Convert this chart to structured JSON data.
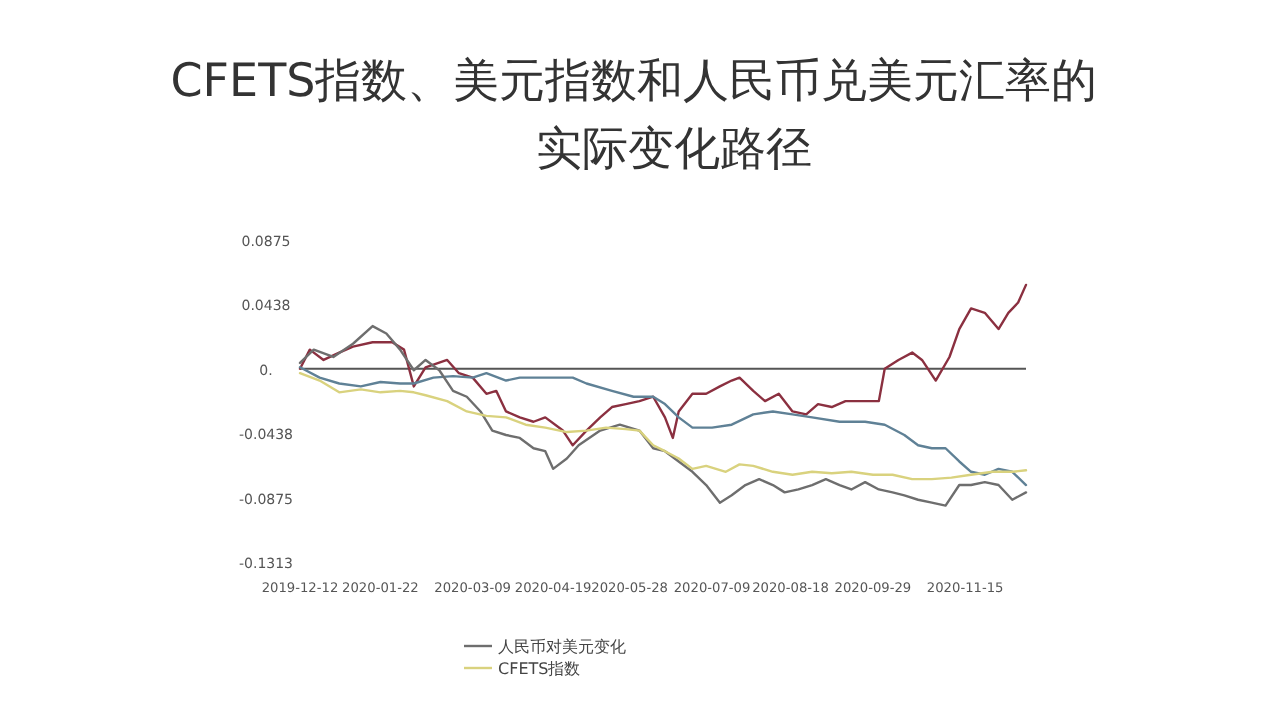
{
  "chart_data": {
    "type": "line",
    "title": "CFETS指数、美元指数和人民币兑美元汇率的实际变化路径",
    "ref_lines": [
      {
        "axis": "y",
        "value": 0,
        "color": "#555555"
      }
    ],
    "legend": "bottom",
    "grid": false,
    "marker": "none",
    "line_style": "solid",
    "xlim": [
      "2019-12-12",
      "2020-12-16"
    ],
    "xticks": [
      "2019-12-12",
      "2020-01-22",
      "2020-03-09",
      "2020-04-19",
      "2020-05-28",
      "2020-07-09",
      "2020-08-18",
      "2020-09-29",
      "2020-11-15"
    ],
    "ylim": [
      -0.1313,
      0.0875
    ],
    "yticks": [
      0.0875,
      0.0438,
      {
        "value": 0,
        "label": "0."
      },
      -0.0438,
      -0.0875,
      -0.1313
    ],
    "series": [
      {
        "color": "#8b3040",
        "x": [
          "2019-12-12",
          "2019-12-17",
          "2019-12-24",
          "2020-01-01",
          "2020-01-08",
          "2020-01-18",
          "2020-01-28",
          "2020-02-03",
          "2020-02-08",
          "2020-02-14",
          "2020-02-25",
          "2020-03-02",
          "2020-03-09",
          "2020-03-16",
          "2020-03-21",
          "2020-03-26",
          "2020-04-02",
          "2020-04-09",
          "2020-04-15",
          "2020-04-24",
          "2020-04-29",
          "2020-05-06",
          "2020-05-13",
          "2020-05-19",
          "2020-05-26",
          "2020-06-02",
          "2020-06-09",
          "2020-06-15",
          "2020-06-19",
          "2020-06-22",
          "2020-06-29",
          "2020-07-06",
          "2020-07-13",
          "2020-07-19",
          "2020-07-23",
          "2020-07-30",
          "2020-08-05",
          "2020-08-12",
          "2020-08-19",
          "2020-08-26",
          "2020-09-01",
          "2020-09-08",
          "2020-09-15",
          "2020-09-22",
          "2020-10-02",
          "2020-10-05",
          "2020-10-12",
          "2020-10-19",
          "2020-10-24",
          "2020-10-31",
          "2020-11-07",
          "2020-11-12",
          "2020-11-18",
          "2020-11-25",
          "2020-12-02",
          "2020-12-07",
          "2020-12-12",
          "2020-12-16"
        ],
        "values": [
          0,
          0.013,
          0.006,
          0.011,
          0.015,
          0.018,
          0.018,
          0.013,
          -0.012,
          0.001,
          0.006,
          -0.003,
          -0.006,
          -0.017,
          -0.015,
          -0.029,
          -0.033,
          -0.036,
          -0.033,
          -0.042,
          -0.052,
          -0.042,
          -0.033,
          -0.026,
          -0.024,
          -0.022,
          -0.019,
          -0.033,
          -0.047,
          -0.029,
          -0.017,
          -0.017,
          -0.012,
          -0.008,
          -0.006,
          -0.015,
          -0.022,
          -0.017,
          -0.029,
          -0.031,
          -0.024,
          -0.026,
          -0.022,
          -0.022,
          -0.022,
          0,
          0.006,
          0.011,
          0.006,
          -0.008,
          0.008,
          0.027,
          0.041,
          0.038,
          0.027,
          0.038,
          0.045,
          0.057
        ]
      },
      {
        "color": "#5f8196",
        "x": [
          "2019-12-12",
          "2019-12-22",
          "2020-01-01",
          "2020-01-12",
          "2020-01-22",
          "2020-02-01",
          "2020-02-08",
          "2020-02-18",
          "2020-02-28",
          "2020-03-09",
          "2020-03-16",
          "2020-03-26",
          "2020-04-02",
          "2020-04-12",
          "2020-04-22",
          "2020-04-29",
          "2020-05-06",
          "2020-05-19",
          "2020-05-30",
          "2020-06-09",
          "2020-06-15",
          "2020-06-22",
          "2020-06-29",
          "2020-07-09",
          "2020-07-19",
          "2020-07-30",
          "2020-08-09",
          "2020-08-19",
          "2020-08-29",
          "2020-09-12",
          "2020-09-25",
          "2020-10-05",
          "2020-10-15",
          "2020-10-22",
          "2020-10-29",
          "2020-11-05",
          "2020-11-12",
          "2020-11-18",
          "2020-11-25",
          "2020-12-02",
          "2020-12-09",
          "2020-12-16"
        ],
        "values": [
          0.001,
          -0.006,
          -0.01,
          -0.012,
          -0.009,
          -0.01,
          -0.01,
          -0.006,
          -0.005,
          -0.006,
          -0.003,
          -0.008,
          -0.006,
          -0.006,
          -0.006,
          -0.006,
          -0.01,
          -0.015,
          -0.019,
          -0.019,
          -0.024,
          -0.033,
          -0.04,
          -0.04,
          -0.038,
          -0.031,
          -0.029,
          -0.031,
          -0.033,
          -0.036,
          -0.036,
          -0.038,
          -0.045,
          -0.052,
          -0.054,
          -0.054,
          -0.063,
          -0.07,
          -0.072,
          -0.068,
          -0.07,
          -0.079
        ]
      },
      {
        "name": "人民币对美元变化",
        "color": "#6e6e6e",
        "x": [
          "2019-12-12",
          "2019-12-19",
          "2019-12-29",
          "2020-01-08",
          "2020-01-18",
          "2020-01-25",
          "2020-02-01",
          "2020-02-08",
          "2020-02-14",
          "2020-02-21",
          "2020-02-28",
          "2020-03-06",
          "2020-03-13",
          "2020-03-19",
          "2020-03-26",
          "2020-04-02",
          "2020-04-09",
          "2020-04-15",
          "2020-04-19",
          "2020-04-26",
          "2020-05-02",
          "2020-05-13",
          "2020-05-23",
          "2020-06-02",
          "2020-06-09",
          "2020-06-15",
          "2020-06-22",
          "2020-06-29",
          "2020-07-06",
          "2020-07-13",
          "2020-07-19",
          "2020-07-26",
          "2020-08-02",
          "2020-08-09",
          "2020-08-15",
          "2020-08-22",
          "2020-08-29",
          "2020-09-05",
          "2020-09-12",
          "2020-09-18",
          "2020-09-25",
          "2020-10-02",
          "2020-10-09",
          "2020-10-15",
          "2020-10-22",
          "2020-10-29",
          "2020-11-05",
          "2020-11-12",
          "2020-11-18",
          "2020-11-25",
          "2020-12-02",
          "2020-12-09",
          "2020-12-16"
        ],
        "values": [
          0.004,
          0.013,
          0.008,
          0.017,
          0.029,
          0.024,
          0.013,
          -0.001,
          0.006,
          -0.001,
          -0.015,
          -0.019,
          -0.029,
          -0.042,
          -0.045,
          -0.047,
          -0.054,
          -0.056,
          -0.068,
          -0.061,
          -0.052,
          -0.042,
          -0.038,
          -0.042,
          -0.054,
          -0.056,
          -0.063,
          -0.07,
          -0.079,
          -0.091,
          -0.086,
          -0.079,
          -0.075,
          -0.079,
          -0.084,
          -0.082,
          -0.079,
          -0.075,
          -0.079,
          -0.082,
          -0.077,
          -0.082,
          -0.084,
          -0.086,
          -0.089,
          -0.091,
          -0.093,
          -0.079,
          -0.079,
          -0.077,
          -0.079,
          -0.089,
          -0.084
        ]
      },
      {
        "name": "CFETS指数",
        "color": "#d9d27e",
        "x": [
          "2019-12-12",
          "2019-12-22",
          "2020-01-01",
          "2020-01-12",
          "2020-01-22",
          "2020-02-01",
          "2020-02-08",
          "2020-02-14",
          "2020-02-25",
          "2020-03-06",
          "2020-03-16",
          "2020-03-26",
          "2020-04-05",
          "2020-04-15",
          "2020-04-26",
          "2020-05-06",
          "2020-05-16",
          "2020-05-26",
          "2020-06-02",
          "2020-06-09",
          "2020-06-15",
          "2020-06-22",
          "2020-06-29",
          "2020-07-06",
          "2020-07-16",
          "2020-07-23",
          "2020-07-30",
          "2020-08-09",
          "2020-08-19",
          "2020-08-29",
          "2020-09-08",
          "2020-09-18",
          "2020-09-29",
          "2020-10-09",
          "2020-10-19",
          "2020-10-29",
          "2020-11-08",
          "2020-11-18",
          "2020-11-29",
          "2020-12-09",
          "2020-12-16"
        ],
        "values": [
          -0.003,
          -0.008,
          -0.016,
          -0.014,
          -0.016,
          -0.015,
          -0.016,
          -0.018,
          -0.022,
          -0.029,
          -0.032,
          -0.033,
          -0.038,
          -0.04,
          -0.043,
          -0.042,
          -0.04,
          -0.041,
          -0.042,
          -0.052,
          -0.056,
          -0.061,
          -0.068,
          -0.066,
          -0.07,
          -0.065,
          -0.066,
          -0.07,
          -0.072,
          -0.07,
          -0.071,
          -0.07,
          -0.072,
          -0.072,
          -0.075,
          -0.075,
          -0.074,
          -0.072,
          -0.07,
          -0.07,
          -0.069
        ]
      }
    ]
  }
}
